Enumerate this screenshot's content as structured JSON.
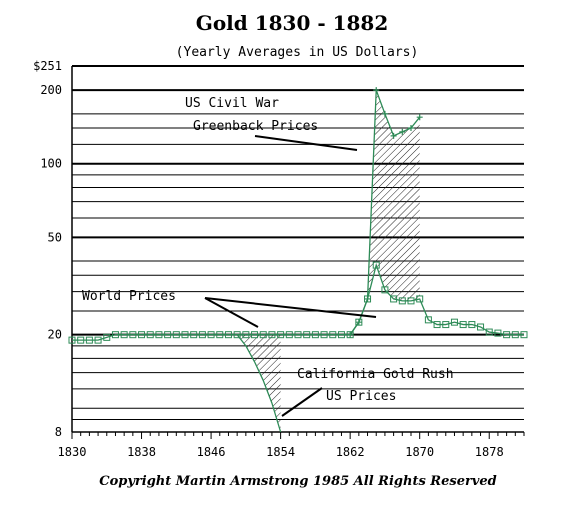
{
  "chart_data": {
    "type": "line",
    "title": "Gold 1830 - 1882",
    "subtitle": "(Yearly Averages in US Dollars)",
    "y_scale": "log",
    "xlim": [
      1830,
      1882
    ],
    "ylim": [
      8,
      251
    ],
    "x_ticks": [
      1830,
      1838,
      1846,
      1854,
      1862,
      1870,
      1878
    ],
    "x_tick_labels": [
      "1830",
      "1838",
      "1846",
      "1854",
      "1862",
      "1870",
      "1878"
    ],
    "y_ticks": [
      8,
      20,
      50,
      100,
      200,
      251
    ],
    "y_tick_labels": [
      "8",
      "20",
      "50",
      "100",
      "200",
      "$251"
    ],
    "grid": true,
    "series": [
      {
        "role": "world",
        "color": "#2e8b57",
        "marker": "square",
        "x": [
          1830,
          1831,
          1832,
          1833,
          1834,
          1835,
          1836,
          1837,
          1838,
          1839,
          1840,
          1841,
          1842,
          1843,
          1844,
          1845,
          1846,
          1847,
          1848,
          1849,
          1850,
          1851,
          1852,
          1853,
          1854,
          1855,
          1856,
          1857,
          1858,
          1859,
          1860,
          1861,
          1862,
          1863,
          1864,
          1865,
          1866,
          1867,
          1868,
          1869,
          1870,
          1871,
          1872,
          1873,
          1874,
          1875,
          1876,
          1877,
          1878,
          1879,
          1880,
          1881,
          1882
        ],
        "y": [
          19.0,
          19.0,
          19.0,
          19.0,
          19.5,
          20.0,
          20.0,
          20.0,
          20.0,
          20.0,
          20.0,
          20.0,
          20.0,
          20.0,
          20.0,
          20.0,
          20.0,
          20.0,
          20.0,
          20.0,
          20.0,
          20.0,
          20.0,
          20.0,
          20.0,
          20.0,
          20.0,
          20.0,
          20.0,
          20.0,
          20.0,
          20.0,
          20.0,
          22.5,
          28.0,
          38.5,
          30.5,
          28.0,
          27.5,
          27.5,
          28.0,
          23.0,
          22.0,
          22.0,
          22.5,
          22.0,
          22.0,
          21.5,
          20.5,
          20.3,
          20.0,
          20.0,
          20.0
        ]
      },
      {
        "role": "us",
        "color": "#2e8b57",
        "marker": "none",
        "x": [
          1849,
          1850,
          1851,
          1852,
          1853,
          1854
        ],
        "y": [
          20.0,
          18.0,
          15.5,
          13.0,
          10.5,
          8.0
        ]
      },
      {
        "role": "greenback",
        "color": "#2e8b57",
        "marker": "plus",
        "x": [
          1862,
          1863,
          1864,
          1865,
          1866,
          1867,
          1868,
          1869,
          1870
        ],
        "y": [
          20.0,
          22.5,
          28.0,
          200.0,
          160.0,
          130.0,
          135.0,
          140.0,
          155.0
        ]
      }
    ],
    "annotations": [
      {
        "text": "US Civil War"
      },
      {
        "text": "Greenback Prices"
      },
      {
        "text": "World Prices"
      },
      {
        "text": "California Gold Rush"
      },
      {
        "text": "US Prices"
      }
    ],
    "footer": "Copyright Martin Armstrong 1985 All Rights Reserved"
  }
}
